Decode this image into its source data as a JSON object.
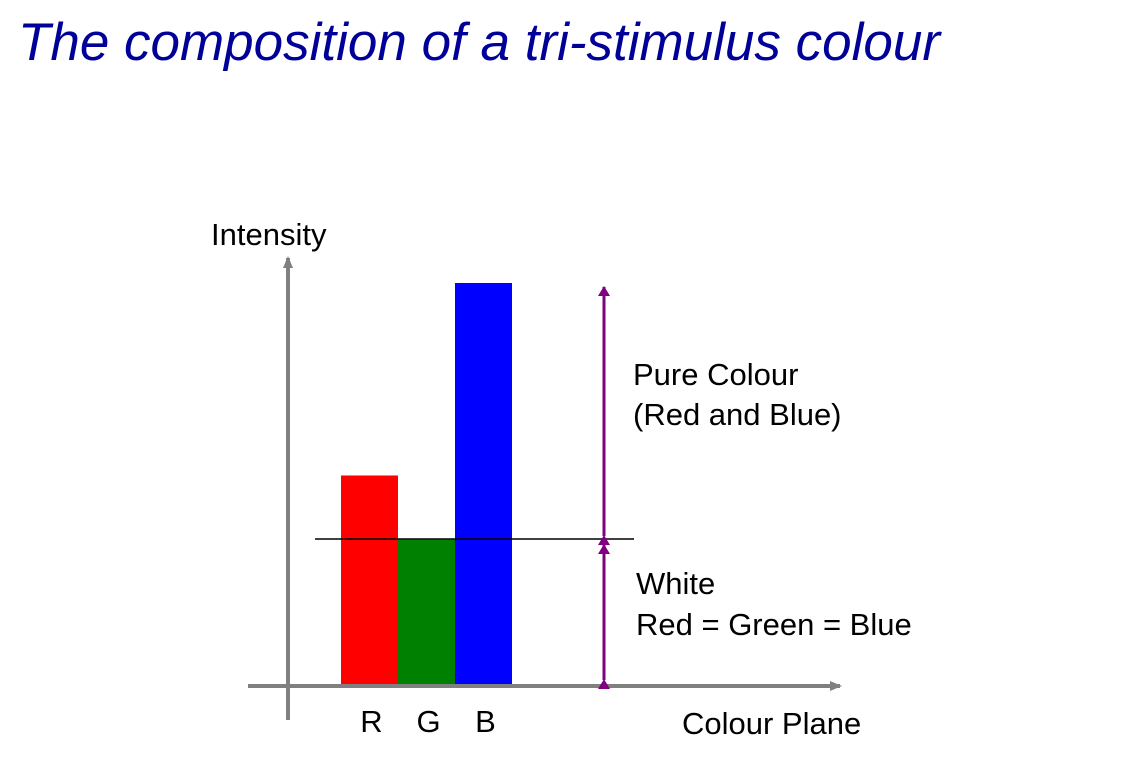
{
  "title": "The composition of a tri-stimulus colour",
  "axes": {
    "y_label": "Intensity",
    "x_label": "Colour Plane"
  },
  "bars": [
    {
      "label": "R",
      "color": "#ff0000",
      "intensity": 0.52,
      "white_part": 0.36
    },
    {
      "label": "G",
      "color": "#008000",
      "intensity": 0.36,
      "white_part": 0.36
    },
    {
      "label": "B",
      "color": "#0000ff",
      "intensity": 1.0,
      "white_part": 0.36
    }
  ],
  "annotations": {
    "pure_colour": {
      "line1": "Pure Colour",
      "line2": "(Red and Blue)"
    },
    "white": {
      "line1": "White",
      "line2": "Red = Green = Blue"
    }
  },
  "colors": {
    "title": "#000099",
    "axis": "#808080",
    "arrow": "#800080",
    "threshold_line": "#000000"
  }
}
